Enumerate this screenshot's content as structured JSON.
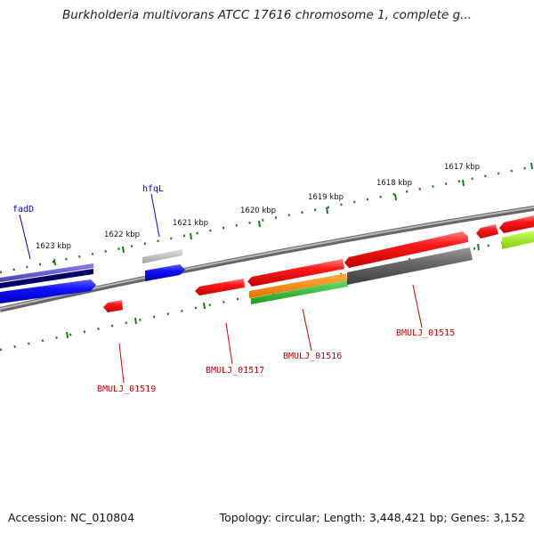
{
  "title": "Burkholderia multivorans ATCC 17616 chromosome 1, complete g...",
  "ruler": {
    "labels": [
      "1623 kbp",
      "1622 kbp",
      "1621 kbp",
      "1620 kbp",
      "1619 kbp",
      "1618 kbp",
      "1617 kbp"
    ]
  },
  "genes": {
    "fadD": "fadD",
    "hfqL": "hfqL",
    "bmul_01519": "BMULJ_01519",
    "bmul_01517": "BMULJ_01517",
    "bmul_01516": "BMULJ_01516",
    "bmul_01515": "BMULJ_01515"
  },
  "colors": {
    "upper_label": "#0000cc",
    "lower_label": "#cc0000",
    "ruler_tick": "#1a7a1a",
    "backbone": "#808080"
  },
  "footer": {
    "accession": "Accession: NC_010804",
    "stats": "Topology: circular; Length: 3,448,421 bp; Genes: 3,152"
  }
}
